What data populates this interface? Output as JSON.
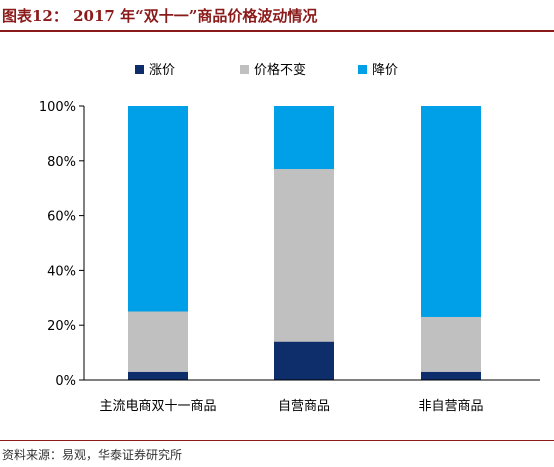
{
  "figure": {
    "title": "图表12： 2017 年“双十一”商品价格波动情况",
    "source": "资料来源：易观，华泰证券研究所"
  },
  "chart_data": {
    "type": "bar",
    "stacked": true,
    "categories": [
      "主流电商双十一商品",
      "自营商品",
      "非自营商品"
    ],
    "series": [
      {
        "name": "涨价",
        "color": "#0d2d6b",
        "values": [
          3,
          14,
          3
        ]
      },
      {
        "name": "价格不变",
        "color": "#c0c0c0",
        "values": [
          22,
          63,
          20
        ]
      },
      {
        "name": "降价",
        "color": "#00a0e9",
        "values": [
          75,
          23,
          77
        ]
      }
    ],
    "ylim": [
      0,
      100
    ],
    "yticks": [
      "0%",
      "20%",
      "40%",
      "60%",
      "80%",
      "100%"
    ],
    "legend_position": "top",
    "grid": false
  }
}
